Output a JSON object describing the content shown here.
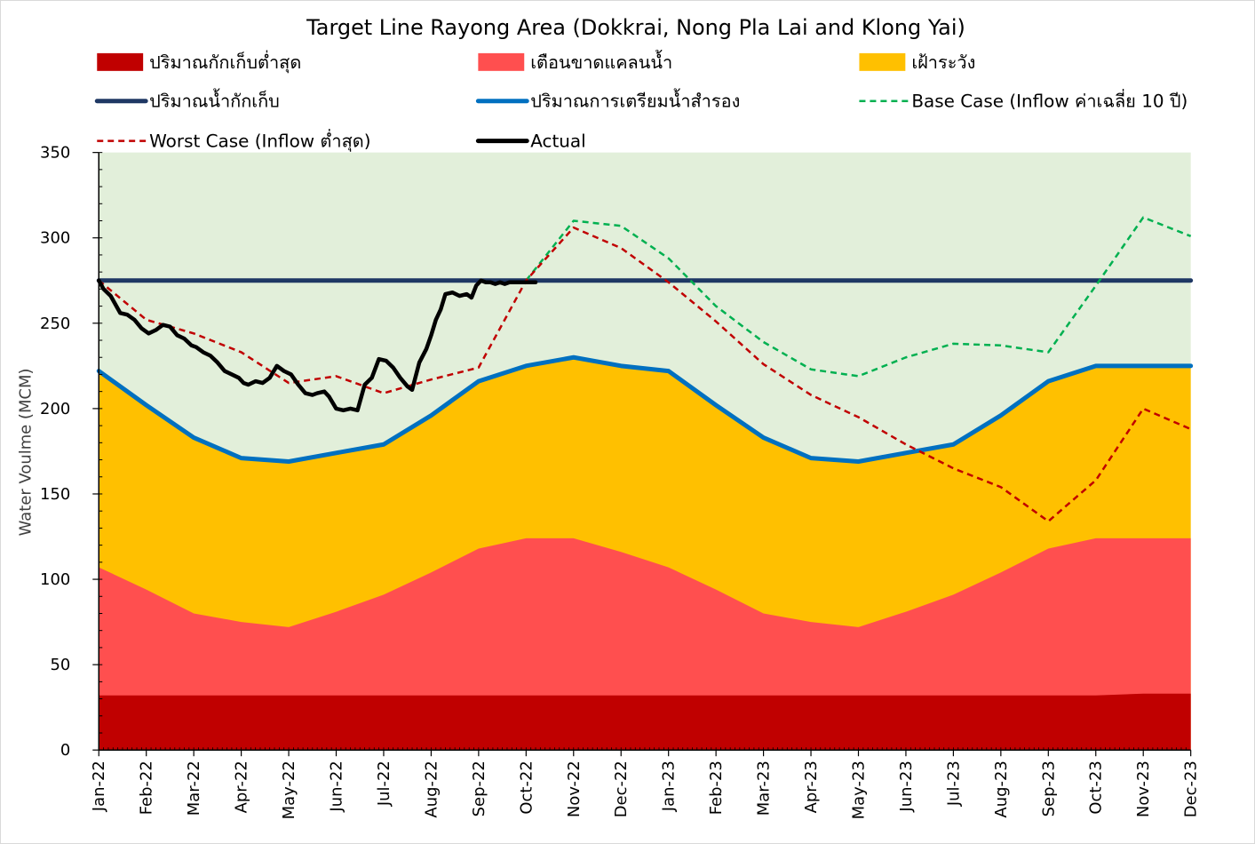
{
  "chart_data": {
    "type": "area",
    "title": "Target Line Rayong Area (Dokkrai, Nong Pla Lai and Klong Yai)",
    "xlabel": "",
    "ylabel": "Water Voulme (MCM)",
    "ylim": [
      0,
      350
    ],
    "yticks": [
      0,
      50,
      100,
      150,
      200,
      250,
      300,
      350
    ],
    "categories": [
      "Jan-22",
      "Feb-22",
      "Mar-22",
      "Apr-22",
      "May-22",
      "Jun-22",
      "Jul-22",
      "Aug-22",
      "Sep-22",
      "Oct-22",
      "Nov-22",
      "Dec-22",
      "Jan-23",
      "Feb-23",
      "Mar-23",
      "Apr-23",
      "May-23",
      "Jun-23",
      "Jul-23",
      "Aug-23",
      "Sep-23",
      "Oct-23",
      "Nov-23",
      "Dec-23"
    ],
    "plot_background": "#E2EFDA",
    "legend": [
      {
        "label": "ปริมาณกักเก็บต่ำสุด",
        "kind": "box",
        "color": "#C00000"
      },
      {
        "label": "เตือนขาดแคลนน้ำ",
        "kind": "box",
        "color": "#FF4F4F"
      },
      {
        "label": "เฝ้าระวัง",
        "kind": "box",
        "color": "#FFC000"
      },
      {
        "label": "ปริมาณน้ำกักเก็บ",
        "kind": "line",
        "color": "#1F3864"
      },
      {
        "label": "ปริมาณการเตรียมน้ำสำรอง",
        "kind": "line",
        "color": "#0070C0"
      },
      {
        "label": "Base Case (Inflow ค่าเฉลี่ย 10 ปี)",
        "kind": "dash",
        "color": "#00B050"
      },
      {
        "label": "Worst Case (Inflow ต่ำสุด)",
        "kind": "dash",
        "color": "#C00000"
      },
      {
        "label": "Actual",
        "kind": "line",
        "color": "#000000"
      }
    ],
    "areas": [
      {
        "name": "ปริมาณกักเก็บต่ำสุด",
        "color": "#C00000",
        "values": [
          32,
          32,
          32,
          32,
          32,
          32,
          32,
          32,
          32,
          32,
          32,
          32,
          32,
          32,
          32,
          32,
          32,
          32,
          32,
          32,
          32,
          32,
          33,
          33
        ]
      },
      {
        "name": "เตือนขาดแคลนน้ำ",
        "color": "#FF4F4F",
        "values": [
          107,
          94,
          80,
          75,
          72,
          81,
          91,
          104,
          118,
          124,
          124,
          116,
          107,
          94,
          80,
          75,
          72,
          81,
          91,
          104,
          118,
          124,
          124,
          124
        ]
      },
      {
        "name": "เฝ้าระวัง",
        "color": "#FFC000",
        "values": [
          222,
          202,
          183,
          171,
          169,
          174,
          179,
          196,
          216,
          225,
          230,
          225,
          222,
          202,
          183,
          171,
          169,
          174,
          179,
          196,
          216,
          225,
          225,
          225
        ]
      }
    ],
    "series": [
      {
        "name": "ปริมาณน้ำกักเก็บ",
        "color": "#1F3864",
        "style": "solid",
        "width": 5,
        "x": [
          0,
          23
        ],
        "values": [
          275,
          275
        ]
      },
      {
        "name": "ปริมาณการเตรียมน้ำสำรอง",
        "color": "#0070C0",
        "style": "solid",
        "width": 5,
        "x": [
          0,
          1,
          2,
          3,
          4,
          5,
          6,
          7,
          8,
          9,
          10,
          11,
          12,
          13,
          14,
          15,
          16,
          17,
          18,
          19,
          20,
          21,
          22,
          23
        ],
        "values": [
          222,
          202,
          183,
          171,
          169,
          174,
          179,
          196,
          216,
          225,
          230,
          225,
          222,
          202,
          183,
          171,
          169,
          174,
          179,
          196,
          216,
          225,
          225,
          225
        ]
      },
      {
        "name": "Base Case (Inflow ค่าเฉลี่ย 10 ปี)",
        "color": "#00B050",
        "style": "dash",
        "width": 2.5,
        "x": [
          9,
          10,
          11,
          12,
          13,
          14,
          15,
          16,
          17,
          18,
          19,
          20,
          21,
          22,
          23
        ],
        "values": [
          275,
          310,
          307,
          288,
          260,
          239,
          223,
          219,
          230,
          238,
          237,
          233,
          272,
          312,
          301
        ]
      },
      {
        "name": "Worst Case (Inflow ต่ำสุด)",
        "color": "#C00000",
        "style": "dash",
        "width": 2.5,
        "x": [
          0,
          1,
          2,
          3,
          4,
          5,
          6,
          7,
          8,
          9,
          10,
          11,
          12,
          13,
          14,
          15,
          16,
          17,
          18,
          19,
          20,
          21,
          22,
          23
        ],
        "values": [
          275,
          252,
          244,
          233,
          215,
          219,
          209,
          217,
          224,
          275,
          306,
          294,
          274,
          251,
          226,
          208,
          195,
          179,
          165,
          154,
          134,
          158,
          200,
          188
        ]
      },
      {
        "name": "Actual",
        "color": "#000000",
        "style": "solid",
        "width": 4.5,
        "x": [
          0,
          0.1,
          0.25,
          0.45,
          0.6,
          0.75,
          0.9,
          1.05,
          1.2,
          1.35,
          1.5,
          1.65,
          1.8,
          1.95,
          2.05,
          2.2,
          2.35,
          2.5,
          2.65,
          2.8,
          2.95,
          3.05,
          3.15,
          3.3,
          3.45,
          3.6,
          3.75,
          3.9,
          4.05,
          4.2,
          4.35,
          4.5,
          4.6,
          4.75,
          4.85,
          5.0,
          5.15,
          5.3,
          5.45,
          5.6,
          5.75,
          5.9,
          6.05,
          6.2,
          6.35,
          6.5,
          6.6,
          6.75,
          6.9,
          7.0,
          7.1,
          7.2,
          7.3,
          7.45,
          7.6,
          7.75,
          7.85,
          7.95,
          8.05,
          8.15,
          8.25,
          8.35,
          8.45,
          8.55,
          8.65,
          8.75,
          8.85,
          8.95,
          9.05,
          9.15,
          9.2
        ],
        "values": [
          275,
          270,
          266,
          256,
          255,
          252,
          247,
          244,
          246,
          249,
          248,
          243,
          241,
          237,
          236,
          233,
          231,
          227,
          222,
          220,
          218,
          215,
          214,
          216,
          215,
          218,
          225,
          222,
          220,
          214,
          209,
          208,
          209,
          210,
          207,
          200,
          199,
          200,
          199,
          214,
          218,
          229,
          228,
          224,
          218,
          213,
          211,
          227,
          235,
          243,
          252,
          258,
          267,
          268,
          266,
          267,
          265,
          272,
          275,
          274,
          274,
          273,
          274,
          273,
          274,
          274,
          274,
          274,
          274,
          274,
          274
        ]
      }
    ]
  }
}
